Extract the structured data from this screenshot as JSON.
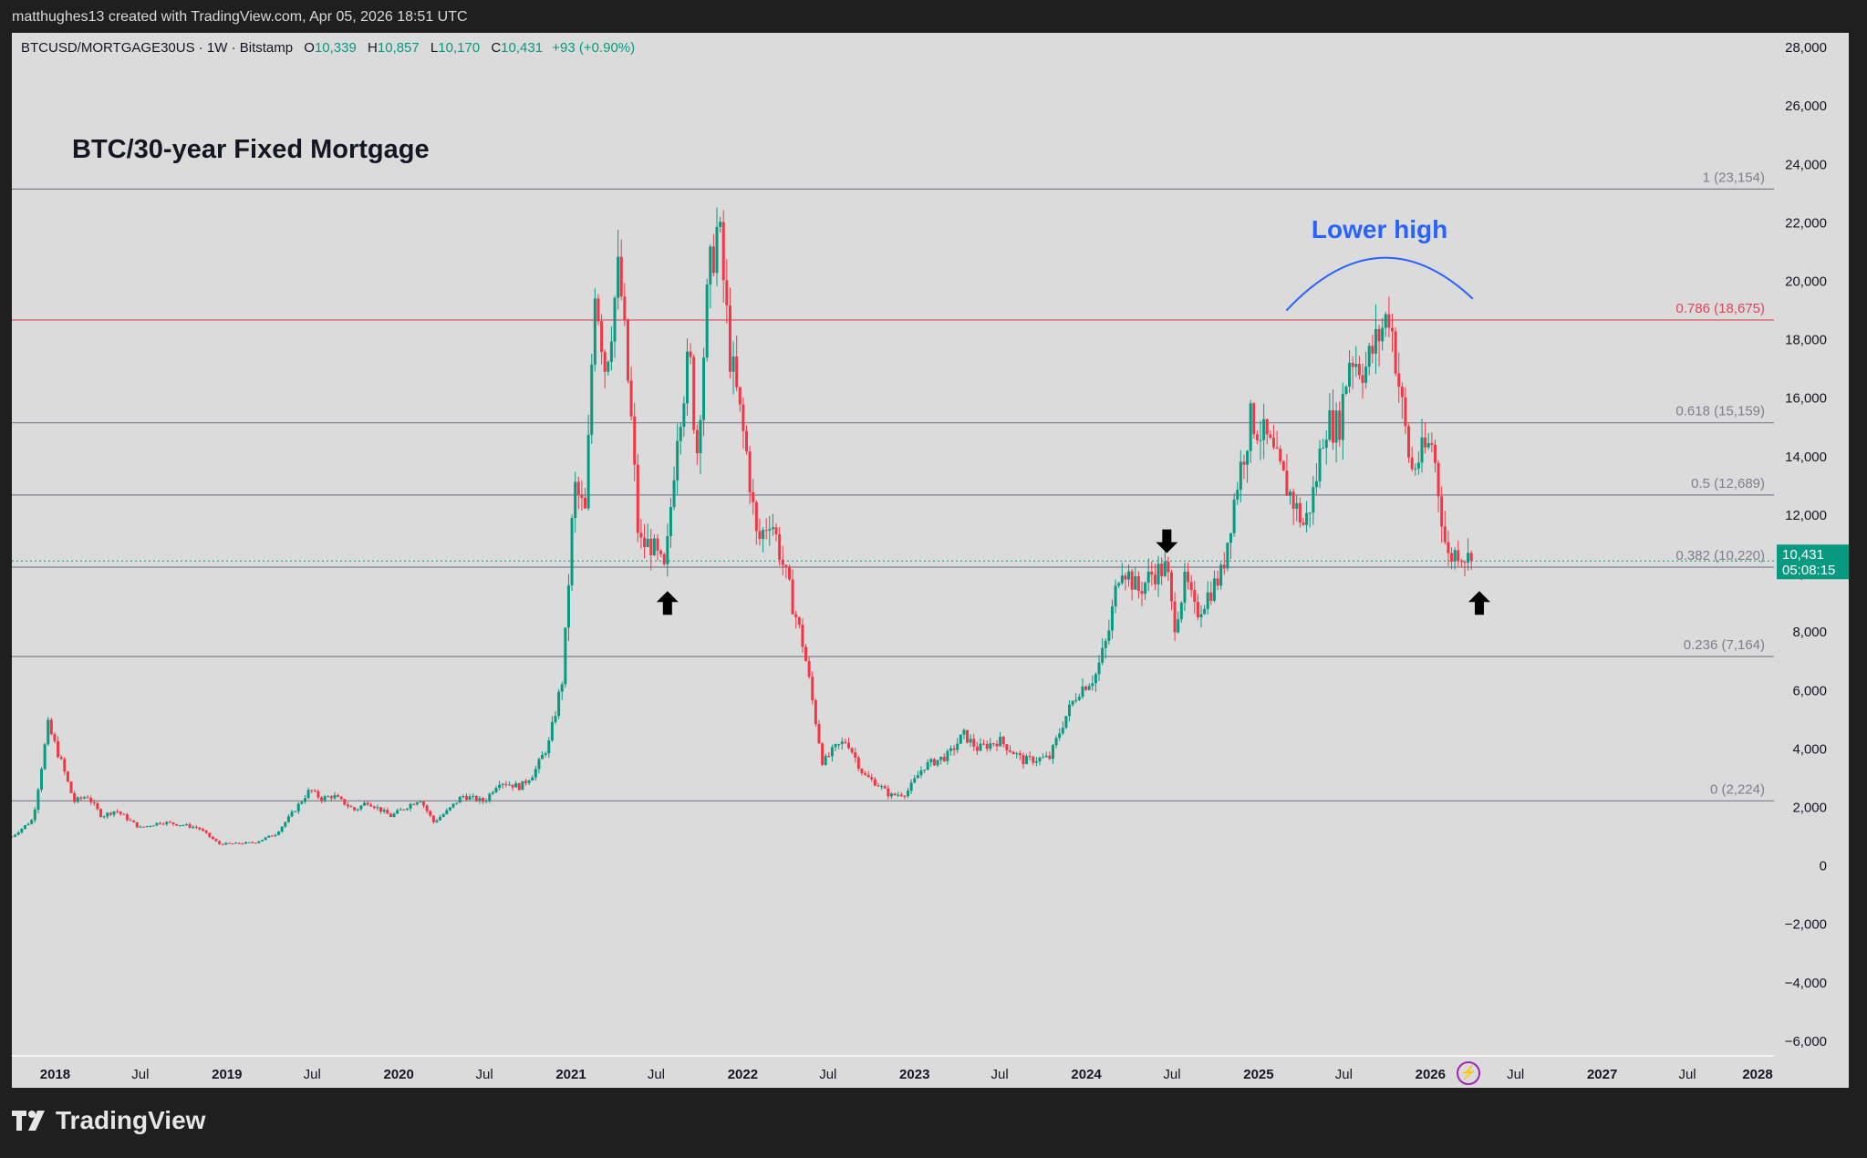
{
  "header": {
    "credit": "matthughes13 created with TradingView.com, Apr 05, 2026 18:51 UTC"
  },
  "legend": {
    "symbol": "BTCUSD/MORTGAGE30US · 1W · Bitstamp",
    "o_label": "O",
    "o": "10,339",
    "h_label": "H",
    "h": "10,857",
    "l_label": "L",
    "l": "10,170",
    "c_label": "C",
    "c": "10,431",
    "change": "+93 (+0.90%)"
  },
  "brand": {
    "name": "TradingView"
  },
  "colors": {
    "up": "#089981",
    "down": "#f23645",
    "fib_line": "#7a7f8c",
    "fib_key": "#e0455a",
    "arc": "#2962ff",
    "price_tag": "#089981"
  },
  "chart_data": {
    "type": "candlestick",
    "title": "BTC/30-year Fixed Mortgage",
    "interval": "1W",
    "ylim": [
      -6500,
      28500
    ],
    "y_ticks": [
      28000,
      26000,
      24000,
      22000,
      20000,
      18000,
      16000,
      14000,
      12000,
      10000,
      8000,
      6000,
      4000,
      2000,
      0,
      -2000,
      -4000,
      -6000
    ],
    "y_tick_labels": [
      "28,000",
      "26,000",
      "24,000",
      "22,000",
      "20,000",
      "18,000",
      "16,000",
      "14,000",
      "12,000",
      "10,000",
      "8,000",
      "6,000",
      "4,000",
      "2,000",
      "0",
      "−2,000",
      "−4,000",
      "−6,000"
    ],
    "x_range": [
      "2017-10-01",
      "2028-01-01"
    ],
    "x_ticks": [
      {
        "date": "2018-01-01",
        "label": "2018",
        "bold": true
      },
      {
        "date": "2018-07-01",
        "label": "Jul"
      },
      {
        "date": "2019-01-01",
        "label": "2019",
        "bold": true
      },
      {
        "date": "2019-07-01",
        "label": "Jul"
      },
      {
        "date": "2020-01-01",
        "label": "2020",
        "bold": true
      },
      {
        "date": "2020-07-01",
        "label": "Jul"
      },
      {
        "date": "2021-01-01",
        "label": "2021",
        "bold": true
      },
      {
        "date": "2021-07-01",
        "label": "Jul"
      },
      {
        "date": "2022-01-01",
        "label": "2022",
        "bold": true
      },
      {
        "date": "2022-07-01",
        "label": "Jul"
      },
      {
        "date": "2023-01-01",
        "label": "2023",
        "bold": true
      },
      {
        "date": "2023-07-01",
        "label": "Jul"
      },
      {
        "date": "2024-01-01",
        "label": "2024",
        "bold": true
      },
      {
        "date": "2024-07-01",
        "label": "Jul"
      },
      {
        "date": "2025-01-01",
        "label": "2025",
        "bold": true
      },
      {
        "date": "2025-07-01",
        "label": "Jul"
      },
      {
        "date": "2026-01-01",
        "label": "2026",
        "bold": true
      },
      {
        "date": "2026-07-01",
        "label": "Jul"
      },
      {
        "date": "2027-01-01",
        "label": "2027",
        "bold": true
      },
      {
        "date": "2027-07-01",
        "label": "Jul"
      },
      {
        "date": "2028-01-01",
        "label": "2028",
        "bold": true
      }
    ],
    "fib_levels": [
      {
        "ratio": "1",
        "value": 23154,
        "label": "1 (23,154)"
      },
      {
        "ratio": "0.786",
        "value": 18675,
        "label": "0.786 (18,675)",
        "highlight": true
      },
      {
        "ratio": "0.618",
        "value": 15159,
        "label": "0.618 (15,159)"
      },
      {
        "ratio": "0.5",
        "value": 12689,
        "label": "0.5 (12,689)"
      },
      {
        "ratio": "0.382",
        "value": 10220,
        "label": "0.382 (10,220)"
      },
      {
        "ratio": "0.236",
        "value": 7164,
        "label": "0.236 (7,164)"
      },
      {
        "ratio": "0",
        "value": 2224,
        "label": "0 (2,224)"
      }
    ],
    "last_price": {
      "value": 10431,
      "label": "10,431",
      "countdown": "05:08:15"
    },
    "annotations": {
      "arc_label": "Lower high",
      "arc": {
        "start": [
          "2025-03-01",
          19000
        ],
        "peak": [
          "2025-09-15",
          20800
        ],
        "end": [
          "2026-04-01",
          19400
        ]
      },
      "arrows": [
        {
          "date": "2021-07-25",
          "value": 9400,
          "dir": "up"
        },
        {
          "date": "2024-06-20",
          "value": 10700,
          "dir": "down"
        },
        {
          "date": "2026-04-15",
          "value": 9400,
          "dir": "up"
        }
      ]
    },
    "trend": [
      [
        "2017-10-01",
        1000
      ],
      [
        "2017-11-15",
        1600
      ],
      [
        "2017-12-17",
        4800
      ],
      [
        "2018-01-15",
        3500
      ],
      [
        "2018-02-10",
        2200
      ],
      [
        "2018-03-10",
        2400
      ],
      [
        "2018-04-10",
        1700
      ],
      [
        "2018-05-10",
        1900
      ],
      [
        "2018-06-30",
        1300
      ],
      [
        "2018-08-15",
        1500
      ],
      [
        "2018-09-30",
        1400
      ],
      [
        "2018-11-01",
        1300
      ],
      [
        "2018-12-15",
        750
      ],
      [
        "2019-01-15",
        760
      ],
      [
        "2019-03-01",
        800
      ],
      [
        "2019-04-15",
        1100
      ],
      [
        "2019-05-15",
        1700
      ],
      [
        "2019-06-26",
        2600
      ],
      [
        "2019-07-20",
        2300
      ],
      [
        "2019-08-15",
        2400
      ],
      [
        "2019-09-30",
        1900
      ],
      [
        "2019-10-26",
        2200
      ],
      [
        "2019-12-15",
        1700
      ],
      [
        "2020-02-15",
        2300
      ],
      [
        "2020-03-15",
        1500
      ],
      [
        "2020-04-15",
        1900
      ],
      [
        "2020-05-15",
        2400
      ],
      [
        "2020-07-01",
        2200
      ],
      [
        "2020-08-01",
        2900
      ],
      [
        "2020-09-15",
        2700
      ],
      [
        "2020-10-15",
        3200
      ],
      [
        "2020-11-15",
        4200
      ],
      [
        "2020-12-15",
        6500
      ],
      [
        "2021-01-08",
        13000
      ],
      [
        "2021-02-01",
        12000
      ],
      [
        "2021-02-21",
        20000
      ],
      [
        "2021-03-15",
        17000
      ],
      [
        "2021-04-13",
        20500
      ],
      [
        "2021-05-10",
        15000
      ],
      [
        "2021-05-25",
        11000
      ],
      [
        "2021-06-20",
        11000
      ],
      [
        "2021-07-20",
        10000
      ],
      [
        "2021-08-15",
        15000
      ],
      [
        "2021-09-10",
        17500
      ],
      [
        "2021-09-25",
        14000
      ],
      [
        "2021-10-20",
        20000
      ],
      [
        "2021-11-10",
        22000
      ],
      [
        "2021-12-05",
        17500
      ],
      [
        "2022-01-10",
        14000
      ],
      [
        "2022-02-01",
        11000
      ],
      [
        "2022-03-01",
        12000
      ],
      [
        "2022-04-01",
        10000
      ],
      [
        "2022-05-10",
        7500
      ],
      [
        "2022-06-20",
        3500
      ],
      [
        "2022-07-15",
        4000
      ],
      [
        "2022-08-10",
        4300
      ],
      [
        "2022-09-15",
        3100
      ],
      [
        "2022-10-15",
        2800
      ],
      [
        "2022-11-10",
        2400
      ],
      [
        "2022-12-15",
        2500
      ],
      [
        "2023-01-20",
        3400
      ],
      [
        "2023-03-15",
        3800
      ],
      [
        "2023-04-15",
        4500
      ],
      [
        "2023-05-15",
        4000
      ],
      [
        "2023-06-30",
        4300
      ],
      [
        "2023-08-20",
        3600
      ],
      [
        "2023-10-15",
        3700
      ],
      [
        "2023-11-15",
        5000
      ],
      [
        "2023-12-15",
        6000
      ],
      [
        "2024-01-20",
        6500
      ],
      [
        "2024-02-15",
        7800
      ],
      [
        "2024-03-14",
        10400
      ],
      [
        "2024-04-20",
        9400
      ],
      [
        "2024-05-20",
        10000
      ],
      [
        "2024-06-20",
        10200
      ],
      [
        "2024-07-05",
        8200
      ],
      [
        "2024-07-30",
        9800
      ],
      [
        "2024-08-20",
        8600
      ],
      [
        "2024-09-20",
        9400
      ],
      [
        "2024-10-15",
        10000
      ],
      [
        "2024-11-15",
        13000
      ],
      [
        "2024-12-16",
        15300
      ],
      [
        "2025-01-20",
        14500
      ],
      [
        "2025-02-15",
        13500
      ],
      [
        "2025-03-15",
        12500
      ],
      [
        "2025-04-08",
        11600
      ],
      [
        "2025-05-01",
        13000
      ],
      [
        "2025-05-22",
        15200
      ],
      [
        "2025-06-20",
        15000
      ],
      [
        "2025-07-14",
        17500
      ],
      [
        "2025-08-15",
        17000
      ],
      [
        "2025-09-10",
        18000
      ],
      [
        "2025-10-06",
        19000
      ],
      [
        "2025-10-30",
        16000
      ],
      [
        "2025-11-21",
        13500
      ],
      [
        "2025-12-10",
        14000
      ],
      [
        "2026-01-05",
        14500
      ],
      [
        "2026-02-06",
        10500
      ],
      [
        "2026-03-01",
        10800
      ],
      [
        "2026-03-29",
        10431
      ]
    ]
  }
}
